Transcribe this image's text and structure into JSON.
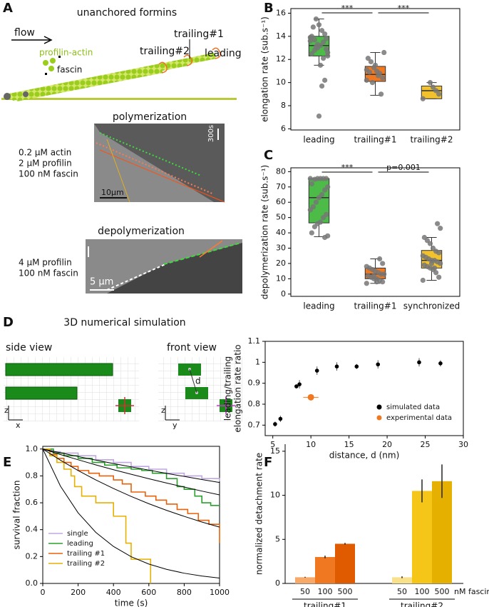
{
  "panel_labels": {
    "a": "A",
    "b": "B",
    "c": "C",
    "d": "D",
    "e": "E",
    "f": "F"
  },
  "panel_a": {
    "title": "unanchored formins",
    "flow": "flow",
    "profilin_actin": "profilin-actin",
    "fascin": "fascin",
    "trailing2": "trailing#2",
    "trailing1": "trailing#1",
    "leading": "leading",
    "polymerization": {
      "title": "polymerization",
      "conditions": [
        "0.2 µM actin",
        "2 µM profilin",
        "100 nM fascin"
      ],
      "time_bar": "300s",
      "scale_bar": "10µm"
    },
    "depolymerization": {
      "title": "depolymerization",
      "conditions": [
        "4 µM profilin",
        "100 nM fascin"
      ],
      "scale_bar": "5 µm"
    }
  },
  "panel_d": {
    "title": "3D numerical simulation",
    "side_view": "side view",
    "front_view": "front view",
    "d": "d",
    "side_axes": [
      "z",
      "x"
    ],
    "front_axes": [
      "z",
      "y"
    ]
  },
  "chart_data": [
    {
      "type": "box",
      "ylabel": "elongation rate (sub.s⁻¹)",
      "categories": [
        "leading",
        "trailing#1",
        "trailing#2"
      ],
      "colors": [
        "#4cbb47",
        "#f07820",
        "#f2c12e"
      ],
      "ylim": [
        5.9,
        16.4
      ],
      "yticks": [
        6,
        8,
        10,
        12,
        14,
        16
      ],
      "annotations": [
        "***",
        "***"
      ],
      "boxes": [
        {
          "whislo": 11.5,
          "q1": 12.3,
          "med": 13.2,
          "q3": 14.0,
          "whishi": 15.5,
          "points": [
            13.9,
            13.8,
            13.5,
            13.2,
            13.0,
            12.8,
            12.5,
            12.3,
            14.2,
            14.5,
            15.0,
            15.5,
            14.8,
            13.6,
            12.9,
            12.1,
            11.5,
            13.3,
            13.7,
            14.0,
            12.6,
            10.2,
            9.7,
            7.1,
            13.1
          ]
        },
        {
          "whislo": 8.9,
          "q1": 10.1,
          "med": 10.7,
          "q3": 11.4,
          "whishi": 12.6,
          "points": [
            10.2,
            10.4,
            10.8,
            11.0,
            11.3,
            11.8,
            12.1,
            12.6,
            9.0,
            10.6,
            11.5,
            10.0,
            10.9,
            11.1
          ]
        },
        {
          "whislo": 8.6,
          "q1": 8.6,
          "med": 9.3,
          "q3": 9.7,
          "whishi": 10.0,
          "points": [
            8.6,
            9.0,
            9.3,
            9.6,
            10.0
          ]
        }
      ]
    },
    {
      "type": "box",
      "ylabel": "depolymerization rate (sub.s⁻¹)",
      "categories": [
        "leading",
        "trailing#1",
        "synchronized"
      ],
      "colors": [
        "#4cbb47",
        "#f07820",
        "#f2c12e"
      ],
      "ylim": [
        -1.5,
        82.5
      ],
      "yticks": [
        0,
        10,
        20,
        30,
        40,
        50,
        60,
        70,
        80
      ],
      "annotations": [
        "***",
        "p=0.001"
      ],
      "boxes": [
        {
          "whislo": 37.5,
          "q1": 46.5,
          "med": 63,
          "q3": 75.5,
          "whishi": 75.5,
          "points": [
            75.5,
            75.5,
            75.5,
            75.5,
            75.5,
            75,
            72,
            70,
            68,
            65,
            63,
            60,
            57,
            55,
            52,
            50,
            47,
            46,
            44,
            40,
            38,
            37
          ]
        },
        {
          "whislo": 7,
          "q1": 10,
          "med": 13,
          "q3": 17,
          "whishi": 23,
          "points": [
            7,
            8,
            9,
            10,
            10,
            11,
            12,
            13,
            13,
            14,
            15,
            16,
            17,
            18,
            20,
            23,
            8,
            12
          ]
        },
        {
          "whislo": 9,
          "q1": 17,
          "med": 22,
          "q3": 28.5,
          "whishi": 37,
          "points": [
            9,
            11,
            14,
            16,
            17,
            18,
            19,
            20,
            21,
            22,
            22,
            23,
            24,
            25,
            27,
            28,
            30,
            33,
            35,
            37,
            43,
            46,
            17,
            20
          ]
        }
      ]
    },
    {
      "type": "scatter",
      "xlabel": "distance, d (nm)",
      "ylabel": [
        "leading/trailing",
        "elongation rate ratio"
      ],
      "xlim": [
        4,
        30
      ],
      "xticks": [
        5,
        10,
        15,
        20,
        25,
        30
      ],
      "ylim": [
        0.65,
        1.1
      ],
      "yticks": [
        0.7,
        0.8,
        0.9,
        1,
        1.1
      ],
      "legend": "lower right",
      "series": [
        {
          "name": "simulated data",
          "color": "#000000",
          "x": [
            5.3,
            6.0,
            8.1,
            8.5,
            10.8,
            13.4,
            16,
            18.8,
            24.2,
            27
          ],
          "values": [
            0.705,
            0.73,
            0.885,
            0.895,
            0.96,
            0.98,
            0.98,
            0.99,
            1.0,
            0.995
          ],
          "yerr": [
            0.012,
            0.015,
            0.01,
            0.02,
            0.02,
            0.02,
            0.012,
            0.02,
            0.02,
            0.015
          ]
        },
        {
          "name": "experimental data",
          "color": "#f07820",
          "x": [
            10
          ],
          "values": [
            0.833
          ],
          "yerr": [
            0.01
          ],
          "xerr": [
            1
          ]
        }
      ]
    },
    {
      "type": "step",
      "xlabel": "time (s)",
      "ylabel": "survival fraction",
      "xlim": [
        0,
        1000
      ],
      "xticks": [
        0,
        200,
        400,
        600,
        800,
        1000
      ],
      "ylim": [
        0,
        1.02
      ],
      "yticks": [
        {
          "value": 0,
          "label": "0.0"
        },
        0.2,
        0.4,
        0.6,
        0.8,
        {
          "value": 1,
          "label": "1.0"
        }
      ],
      "legend": "lower left",
      "series": [
        {
          "name": "single",
          "color": "#c0a8e0",
          "drawstyle": "steps-post",
          "x": [
            0,
            50,
            100,
            200,
            300,
            400,
            500,
            600,
            700,
            800,
            900,
            1000
          ],
          "values": [
            1,
            0.98,
            0.97,
            0.95,
            0.92,
            0.9,
            0.87,
            0.85,
            0.82,
            0.8,
            0.78,
            0.76
          ]
        },
        {
          "name": "leading",
          "color": "#2ca02c",
          "drawstyle": "steps-post",
          "x": [
            0,
            60,
            120,
            200,
            280,
            350,
            420,
            500,
            560,
            620,
            700,
            760,
            800,
            860,
            900,
            950,
            1000
          ],
          "values": [
            1,
            0.97,
            0.95,
            0.93,
            0.9,
            0.88,
            0.86,
            0.85,
            0.84,
            0.82,
            0.78,
            0.72,
            0.7,
            0.65,
            0.6,
            0.58,
            0.58
          ]
        },
        {
          "name": "trailing #1",
          "color": "#e8620a",
          "drawstyle": "steps-post",
          "x": [
            0,
            40,
            80,
            120,
            160,
            200,
            260,
            320,
            400,
            450,
            500,
            580,
            640,
            700,
            760,
            820,
            880,
            940,
            1000
          ],
          "values": [
            1,
            0.96,
            0.93,
            0.9,
            0.87,
            0.84,
            0.82,
            0.8,
            0.77,
            0.74,
            0.68,
            0.65,
            0.62,
            0.59,
            0.55,
            0.52,
            0.47,
            0.44,
            0.3
          ]
        },
        {
          "name": "trailing #2",
          "color": "#e6b000",
          "drawstyle": "steps-post",
          "x": [
            0,
            40,
            80,
            120,
            160,
            180,
            220,
            300,
            400,
            470,
            500,
            610
          ],
          "values": [
            1,
            0.95,
            0.9,
            0.85,
            0.8,
            0.72,
            0.65,
            0.6,
            0.5,
            0.3,
            0.18,
            0
          ]
        },
        {
          "color": "#000000",
          "x": [
            0,
            100,
            200,
            300,
            400,
            500,
            600,
            700,
            800,
            900,
            1000
          ],
          "values": [
            1,
            0.724,
            0.525,
            0.38,
            0.275,
            0.199,
            0.144,
            0.105,
            0.076,
            0.055,
            0.04
          ]
        },
        {
          "color": "#000000",
          "x": [
            0,
            100,
            200,
            300,
            400,
            500,
            600,
            700,
            800,
            900,
            1000
          ],
          "values": [
            1,
            0.917,
            0.84,
            0.77,
            0.706,
            0.647,
            0.593,
            0.544,
            0.499,
            0.457,
            0.419
          ]
        },
        {
          "color": "#000000",
          "x": [
            0,
            100,
            200,
            300,
            400,
            500,
            600,
            700,
            800,
            900,
            1000
          ],
          "values": [
            1,
            0.959,
            0.92,
            0.882,
            0.846,
            0.812,
            0.779,
            0.747,
            0.717,
            0.687,
            0.659
          ]
        },
        {
          "color": "#000000",
          "x": [
            0,
            100,
            200,
            300,
            400,
            500,
            600,
            700,
            800,
            900,
            1000
          ],
          "values": [
            1,
            0.972,
            0.944,
            0.918,
            0.892,
            0.867,
            0.843,
            0.819,
            0.796,
            0.773,
            0.751
          ]
        }
      ]
    },
    {
      "type": "bar",
      "ylabel": "normalized detachment rate",
      "unit_label": "nM fascin",
      "ylim": [
        0,
        15.8
      ],
      "yticks": [
        0,
        5,
        10,
        15
      ],
      "groups": [
        {
          "name": "trailing#1",
          "categories": [
            "50",
            "100",
            "500"
          ],
          "values": [
            0.7,
            3.0,
            4.5
          ],
          "errors": [
            0.05,
            0.15,
            0.1
          ],
          "colors": [
            "#f8a868",
            "#f07820",
            "#e05a00"
          ]
        },
        {
          "name": "trailing#2",
          "categories": [
            "50",
            "100",
            "500"
          ],
          "values": [
            0.7,
            10.5,
            11.6
          ],
          "errors": [
            0.1,
            1.3,
            1.9
          ],
          "colors": [
            "#f9e08a",
            "#f5c518",
            "#e6b000"
          ]
        }
      ]
    }
  ]
}
